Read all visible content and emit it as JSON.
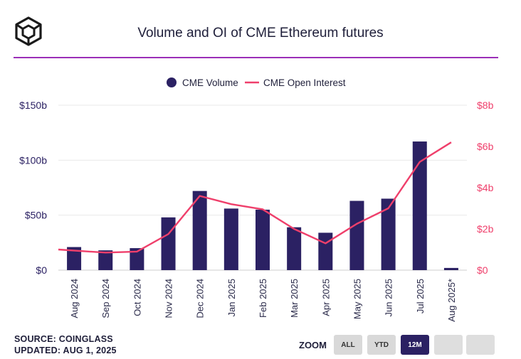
{
  "header": {
    "title": "Volume and OI of CME Ethereum futures"
  },
  "footer": {
    "source": "SOURCE: COINGLASS",
    "updated": "UPDATED: AUG 1, 2025"
  },
  "zoom": {
    "label": "ZOOM",
    "buttons": [
      "ALL",
      "YTD",
      "12M",
      "",
      ""
    ],
    "active": "12M"
  },
  "colors": {
    "volume_bar": "#2b2163",
    "oi_line": "#ef3f6b",
    "title_rule": "#9b2fb8",
    "left_axis_text": "#2b2163",
    "right_axis_text": "#ef3f6b"
  },
  "chart_data": {
    "type": "bar+line",
    "title": "Volume and OI of CME Ethereum futures",
    "categories": [
      "Aug 2024",
      "Sep 2024",
      "Oct 2024",
      "Nov 2024",
      "Dec 2024",
      "Jan 2025",
      "Feb 2025",
      "Mar 2025",
      "Apr 2025",
      "May 2025",
      "Jun 2025",
      "Jul 2025",
      "Aug 2025*"
    ],
    "series": [
      {
        "name": "CME Volume",
        "type": "bar",
        "axis": "left",
        "unit": "billion USD",
        "values": [
          21,
          18,
          20,
          48,
          72,
          56,
          55,
          39,
          34,
          63,
          65,
          117,
          2
        ]
      },
      {
        "name": "CME Open Interest",
        "type": "line",
        "axis": "right",
        "unit": "billion USD",
        "values": [
          1.0,
          0.85,
          0.9,
          1.75,
          3.6,
          3.2,
          2.95,
          2.0,
          1.3,
          2.25,
          3.0,
          5.25,
          6.2
        ]
      }
    ],
    "left_axis": {
      "ylim": [
        0,
        150
      ],
      "ticks": [
        0,
        50,
        100,
        150
      ],
      "tick_labels": [
        "$0",
        "$50b",
        "$100b",
        "$150b"
      ]
    },
    "right_axis": {
      "ylim": [
        0,
        8
      ],
      "ticks": [
        0,
        2,
        4,
        6,
        8
      ],
      "tick_labels": [
        "$0",
        "$2b",
        "$4b",
        "$6b",
        "$8b"
      ]
    },
    "legend": {
      "position": "top-center",
      "entries": [
        "CME Volume",
        "CME Open Interest"
      ]
    },
    "grid": true
  }
}
